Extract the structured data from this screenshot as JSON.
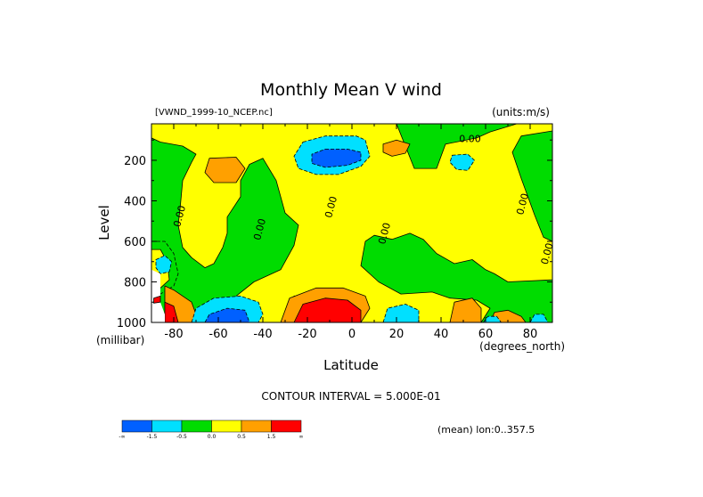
{
  "chart_data": {
    "type": "heatmap",
    "title": "Monthly Mean V wind",
    "dataset_label": "[VWND_1999-10_NCEP.nc]",
    "units_label": "(units:m/s)",
    "xlabel": "Latitude",
    "x_units_label": "(degrees_north)",
    "ylabel": "Level",
    "y_units_label": "(millibar)",
    "xlim": [
      -90,
      90
    ],
    "ylim": [
      1000,
      20
    ],
    "x_ticks": [
      -80,
      -60,
      -40,
      -20,
      0,
      20,
      40,
      60,
      80
    ],
    "x_tick_labels": [
      "-80",
      "-60",
      "-40",
      "-20",
      "0",
      "20",
      "40",
      "60",
      "80"
    ],
    "y_ticks": [
      200,
      400,
      600,
      800,
      1000
    ],
    "y_tick_labels": [
      "200",
      "400",
      "600",
      "800",
      "1000"
    ],
    "contour_interval_text": "CONTOUR INTERVAL = 5.000E-01",
    "mean_label": "(mean) lon:0..357.5",
    "contour_labels": [
      {
        "text": "0.00",
        "lat": 53,
        "level": 110
      },
      {
        "text": "0.00",
        "lat": -76,
        "level": 480
      },
      {
        "text": "0.00",
        "lat": -40,
        "level": 545
      },
      {
        "text": "0.00",
        "lat": -8,
        "level": 435
      },
      {
        "text": "0.00",
        "lat": 16,
        "level": 565
      },
      {
        "text": "0.00",
        "lat": 78,
        "level": 420
      },
      {
        "text": "0.00",
        "lat": 89,
        "level": 665
      }
    ],
    "legend": {
      "levels": [
        {
          "range": "< -1.5",
          "color": "#0060ff"
        },
        {
          "range": "-1.5 to -0.5",
          "color": "#00e0ff"
        },
        {
          "range": "-0.5 to 0.0",
          "color": "#00dc00"
        },
        {
          "range": "0.0 to 0.5",
          "color": "#ffff00"
        },
        {
          "range": "0.5 to 1.5",
          "color": "#ffa000"
        },
        {
          "range": "> 1.5",
          "color": "#ff0000"
        }
      ],
      "tick_labels": [
        "-∞",
        "-1.5",
        "-0.5",
        "0.0",
        "0.5",
        "1.5",
        "∞"
      ]
    },
    "regions": [
      {
        "value": -0.2,
        "color": "#00dc00",
        "poly": [
          [
            -90,
            20
          ],
          [
            90,
            20
          ],
          [
            90,
            1000
          ],
          [
            -90,
            1000
          ]
        ]
      },
      {
        "value": 0.2,
        "color": "#ffff00",
        "poly": [
          [
            -90,
            20
          ],
          [
            20,
            20
          ],
          [
            28,
            240
          ],
          [
            38,
            240
          ],
          [
            42,
            120
          ],
          [
            56,
            90
          ],
          [
            62,
            60
          ],
          [
            74,
            20
          ],
          [
            90,
            20
          ],
          [
            90,
            55
          ],
          [
            76,
            80
          ],
          [
            72,
            160
          ],
          [
            76,
            290
          ],
          [
            82,
            470
          ],
          [
            86,
            580
          ],
          [
            90,
            600
          ],
          [
            90,
            790
          ],
          [
            70,
            800
          ],
          [
            64,
            760
          ],
          [
            60,
            740
          ],
          [
            54,
            690
          ],
          [
            46,
            710
          ],
          [
            38,
            660
          ],
          [
            32,
            590
          ],
          [
            26,
            560
          ],
          [
            18,
            590
          ],
          [
            10,
            570
          ],
          [
            6,
            600
          ],
          [
            4,
            720
          ],
          [
            12,
            800
          ],
          [
            22,
            860
          ],
          [
            36,
            850
          ],
          [
            44,
            880
          ],
          [
            56,
            890
          ],
          [
            62,
            930
          ],
          [
            58,
            1000
          ],
          [
            -46,
            1000
          ],
          [
            -52,
            870
          ],
          [
            -44,
            800
          ],
          [
            -32,
            740
          ],
          [
            -26,
            620
          ],
          [
            -24,
            520
          ],
          [
            -30,
            460
          ],
          [
            -32,
            380
          ],
          [
            -34,
            300
          ],
          [
            -40,
            190
          ],
          [
            -46,
            220
          ],
          [
            -50,
            300
          ],
          [
            -50,
            380
          ],
          [
            -56,
            480
          ],
          [
            -56,
            560
          ],
          [
            -58,
            630
          ],
          [
            -62,
            710
          ],
          [
            -66,
            730
          ],
          [
            -72,
            680
          ],
          [
            -76,
            630
          ],
          [
            -78,
            520
          ],
          [
            -77,
            420
          ],
          [
            -76,
            300
          ],
          [
            -72,
            210
          ],
          [
            -70,
            170
          ],
          [
            -76,
            130
          ],
          [
            -86,
            110
          ],
          [
            -90,
            90
          ]
        ]
      },
      {
        "value": -0.2,
        "color": "#00dc00",
        "poly": [
          [
            -90,
            600
          ],
          [
            -84,
            600
          ],
          [
            -80,
            660
          ],
          [
            -78,
            760
          ],
          [
            -80,
            820
          ],
          [
            -86,
            860
          ],
          [
            -90,
            840
          ]
        ]
      },
      {
        "value": 0.2,
        "color": "#ffff00",
        "poly": [
          [
            -90,
            640
          ],
          [
            -86,
            640
          ],
          [
            -83,
            700
          ],
          [
            -82,
            790
          ],
          [
            -86,
            830
          ],
          [
            -90,
            820
          ]
        ]
      },
      {
        "value": -0.2,
        "color": "#00dc00",
        "poly": [
          [
            -4,
            1000
          ],
          [
            -22,
            1000
          ],
          [
            -28,
            920
          ],
          [
            -26,
            870
          ],
          [
            -14,
            860
          ],
          [
            -4,
            900
          ]
        ]
      },
      {
        "value": -0.8,
        "color": "#00e0ff",
        "poly": [
          [
            -22,
            110
          ],
          [
            -12,
            80
          ],
          [
            2,
            80
          ],
          [
            6,
            100
          ],
          [
            8,
            180
          ],
          [
            4,
            230
          ],
          [
            -6,
            270
          ],
          [
            -16,
            270
          ],
          [
            -24,
            240
          ],
          [
            -26,
            180
          ]
        ]
      },
      {
        "value": -1.8,
        "color": "#0060ff",
        "poly": [
          [
            -12,
            145
          ],
          [
            -2,
            145
          ],
          [
            4,
            160
          ],
          [
            4,
            200
          ],
          [
            -2,
            225
          ],
          [
            -12,
            235
          ],
          [
            -18,
            215
          ],
          [
            -18,
            170
          ]
        ]
      },
      {
        "value": -0.8,
        "color": "#00e0ff",
        "poly": [
          [
            45,
            175
          ],
          [
            52,
            170
          ],
          [
            55,
            200
          ],
          [
            52,
            250
          ],
          [
            47,
            245
          ],
          [
            44,
            210
          ]
        ]
      },
      {
        "value": 0.8,
        "color": "#ffa000",
        "poly": [
          [
            -64,
            190
          ],
          [
            -52,
            185
          ],
          [
            -48,
            240
          ],
          [
            -52,
            310
          ],
          [
            -62,
            310
          ],
          [
            -66,
            260
          ]
        ]
      },
      {
        "value": 0.8,
        "color": "#ffa000",
        "poly": [
          [
            14,
            120
          ],
          [
            20,
            100
          ],
          [
            26,
            120
          ],
          [
            24,
            165
          ],
          [
            18,
            180
          ],
          [
            14,
            160
          ]
        ]
      },
      {
        "value": 0.8,
        "color": "#ffa000",
        "poly": [
          [
            -84,
            820
          ],
          [
            -80,
            840
          ],
          [
            -72,
            900
          ],
          [
            -70,
            960
          ],
          [
            -72,
            1000
          ],
          [
            -84,
            1000
          ]
        ]
      },
      {
        "value": 1.8,
        "color": "#ff0000",
        "poly": [
          [
            -84,
            900
          ],
          [
            -80,
            920
          ],
          [
            -78,
            1000
          ],
          [
            -84,
            1000
          ]
        ]
      },
      {
        "value": 0.8,
        "color": "#ffa000",
        "poly": [
          [
            -32,
            1000
          ],
          [
            -28,
            880
          ],
          [
            -16,
            830
          ],
          [
            -4,
            830
          ],
          [
            6,
            870
          ],
          [
            8,
            930
          ],
          [
            4,
            1000
          ]
        ]
      },
      {
        "value": 1.8,
        "color": "#ff0000",
        "poly": [
          [
            -26,
            1000
          ],
          [
            -22,
            910
          ],
          [
            -12,
            880
          ],
          [
            -2,
            890
          ],
          [
            4,
            940
          ],
          [
            4,
            1000
          ]
        ]
      },
      {
        "value": 0.8,
        "color": "#ffa000",
        "poly": [
          [
            44,
            1000
          ],
          [
            46,
            900
          ],
          [
            54,
            880
          ],
          [
            58,
            930
          ],
          [
            58,
            1000
          ]
        ]
      },
      {
        "value": 0.8,
        "color": "#ffa000",
        "poly": [
          [
            62,
            1000
          ],
          [
            64,
            950
          ],
          [
            70,
            940
          ],
          [
            76,
            970
          ],
          [
            78,
            1000
          ]
        ]
      },
      {
        "value": -0.8,
        "color": "#00e0ff",
        "poly": [
          [
            -72,
            1000
          ],
          [
            -70,
            930
          ],
          [
            -62,
            880
          ],
          [
            -50,
            870
          ],
          [
            -42,
            900
          ],
          [
            -40,
            960
          ],
          [
            -42,
            1000
          ]
        ]
      },
      {
        "value": -1.8,
        "color": "#0060ff",
        "poly": [
          [
            -66,
            1000
          ],
          [
            -64,
            960
          ],
          [
            -56,
            930
          ],
          [
            -48,
            940
          ],
          [
            -46,
            1000
          ]
        ]
      },
      {
        "value": -0.8,
        "color": "#00e0ff",
        "poly": [
          [
            14,
            1000
          ],
          [
            16,
            930
          ],
          [
            24,
            910
          ],
          [
            30,
            940
          ],
          [
            30,
            1000
          ]
        ]
      },
      {
        "value": -0.8,
        "color": "#00e0ff",
        "poly": [
          [
            -88,
            690
          ],
          [
            -84,
            670
          ],
          [
            -81,
            700
          ],
          [
            -82,
            750
          ],
          [
            -86,
            760
          ],
          [
            -88,
            730
          ]
        ]
      },
      {
        "value": -0.8,
        "color": "#00e0ff",
        "poly": [
          [
            59,
            1000
          ],
          [
            61,
            970
          ],
          [
            65,
            970
          ],
          [
            67,
            1000
          ]
        ]
      },
      {
        "value": -0.8,
        "color": "#00e0ff",
        "poly": [
          [
            80,
            1000
          ],
          [
            82,
            960
          ],
          [
            86,
            960
          ],
          [
            88,
            1000
          ]
        ]
      },
      {
        "value": null,
        "color": "#ffffff",
        "poly": [
          [
            -90,
            740
          ],
          [
            -86,
            760
          ],
          [
            -86,
            900
          ],
          [
            -84,
            960
          ],
          [
            -84,
            1000
          ],
          [
            -90,
            1000
          ]
        ]
      },
      {
        "value": 1.8,
        "color": "#ff0000",
        "poly": [
          [
            -89,
            880
          ],
          [
            -86,
            870
          ],
          [
            -86,
            900
          ],
          [
            -89,
            905
          ]
        ]
      }
    ]
  }
}
